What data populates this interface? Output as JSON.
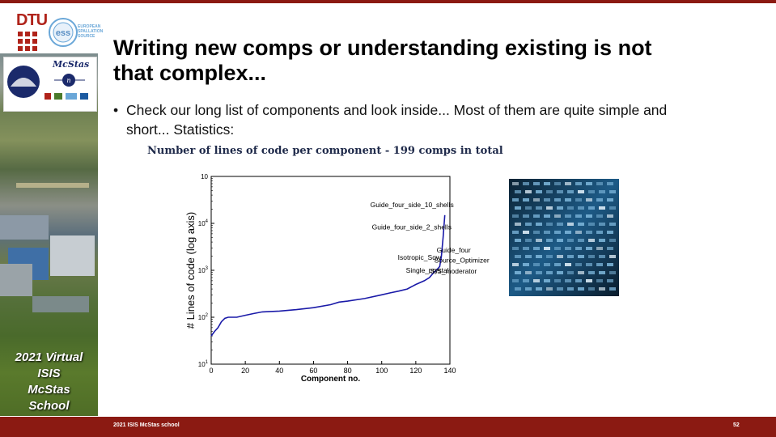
{
  "branding": {
    "dtu_label": "DTU",
    "ess_lines": [
      "EUROPEAN",
      "SPALLATION",
      "SOURCE"
    ],
    "ess_abbrev": "ess",
    "mcstas_label": "McStas",
    "school_lines": [
      "2021 Virtual",
      "ISIS",
      "McStas",
      "School"
    ]
  },
  "slide": {
    "title": "Writing new comps or understanding existing is not that complex...",
    "bullet": "Check our long list of components and look inside... Most of them are quite simple and short... Statistics:",
    "chart_heading": "Number of lines of code per component - 199 comps in total"
  },
  "footer": {
    "left": "2021 ISIS McStas school",
    "page": "52"
  },
  "colors": {
    "brand_red": "#8b1a12",
    "line": "#1a1aa8"
  },
  "chart_data": {
    "type": "line",
    "xlabel": "Component no.",
    "ylabel": "# Lines of code (log axis)",
    "xlim": [
      0,
      140
    ],
    "ylim": [
      10,
      100000
    ],
    "yscale": "log",
    "x_ticks": [
      "0",
      "20",
      "40",
      "60",
      "80",
      "100",
      "120",
      "140"
    ],
    "y_ticks": [
      {
        "base": "10",
        "exp": "1",
        "value": 10
      },
      {
        "base": "10",
        "exp": "2",
        "value": 100
      },
      {
        "base": "10",
        "exp": "3",
        "value": 1000
      },
      {
        "base": "10",
        "exp": "4",
        "value": 10000
      },
      {
        "base": "10",
        "exp": "",
        "value": 100000
      }
    ],
    "series": [
      {
        "x": [
          0,
          2,
          4,
          6,
          8,
          10,
          15,
          20,
          25,
          30,
          40,
          50,
          60,
          70,
          75,
          80,
          90,
          100,
          105,
          110,
          115,
          120,
          125,
          128,
          130,
          132,
          134,
          135,
          136,
          137
        ],
        "y": [
          40,
          50,
          60,
          80,
          95,
          100,
          100,
          110,
          120,
          130,
          135,
          145,
          160,
          185,
          210,
          220,
          250,
          300,
          330,
          360,
          400,
          500,
          600,
          700,
          850,
          1000,
          1200,
          2000,
          5000,
          15000
        ]
      }
    ],
    "annotations": [
      {
        "text": "Guide_four_side_10_shells",
        "x": 137,
        "y": 15000
      },
      {
        "text": "Guide_four_side_2_shells",
        "x": 137,
        "y": 5000
      },
      {
        "text": "Isotropic_Sqw",
        "x": 137,
        "y": 1800
      },
      {
        "text": "Guide_four",
        "x": 137,
        "y": 1900
      },
      {
        "text": "Source_Optimizer",
        "x": 137,
        "y": 1350
      },
      {
        "text": "Single_crystal",
        "x": 137,
        "y": 1050
      },
      {
        "text": "ISIS_moderator",
        "x": 137,
        "y": 1000
      }
    ]
  }
}
